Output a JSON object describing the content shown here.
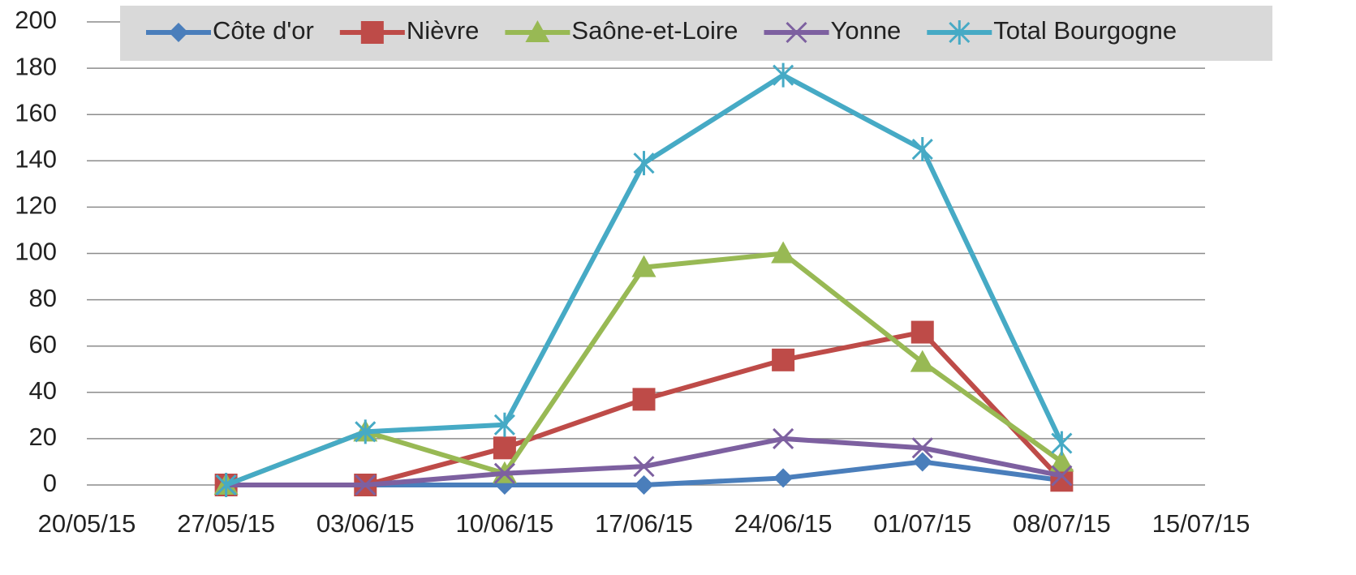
{
  "chart_data": {
    "type": "line",
    "x": [
      "27/05/15",
      "03/06/15",
      "10/06/15",
      "17/06/15",
      "24/06/15",
      "01/07/15",
      "08/07/15"
    ],
    "xlim": [
      "20/05/15",
      "15/07/15"
    ],
    "xticks": [
      "20/05/15",
      "27/05/15",
      "03/06/15",
      "10/06/15",
      "17/06/15",
      "24/06/15",
      "01/07/15",
      "08/07/15",
      "15/07/15"
    ],
    "ylim": [
      0,
      200
    ],
    "yticks": [
      0,
      20,
      40,
      60,
      80,
      100,
      120,
      140,
      160,
      180,
      200
    ],
    "grid": true,
    "legend": "top",
    "series": [
      {
        "name": "Côte d'or",
        "color": "#4a7ebb",
        "marker": "diamond",
        "values": [
          0,
          0,
          0,
          0,
          3,
          10,
          2
        ]
      },
      {
        "name": "Nièvre",
        "color": "#be4b48",
        "marker": "square",
        "values": [
          0,
          0,
          16,
          37,
          54,
          66,
          2
        ]
      },
      {
        "name": "Saône-et-Loire",
        "color": "#98b954",
        "marker": "triangle",
        "values": [
          0,
          23,
          5,
          94,
          100,
          53,
          10
        ]
      },
      {
        "name": "Yonne",
        "color": "#7d60a0",
        "marker": "x",
        "values": [
          0,
          0,
          5,
          8,
          20,
          16,
          4
        ]
      },
      {
        "name": "Total Bourgogne",
        "color": "#46aac5",
        "marker": "star",
        "values": [
          0,
          23,
          26,
          139,
          177,
          145,
          18
        ]
      }
    ]
  }
}
